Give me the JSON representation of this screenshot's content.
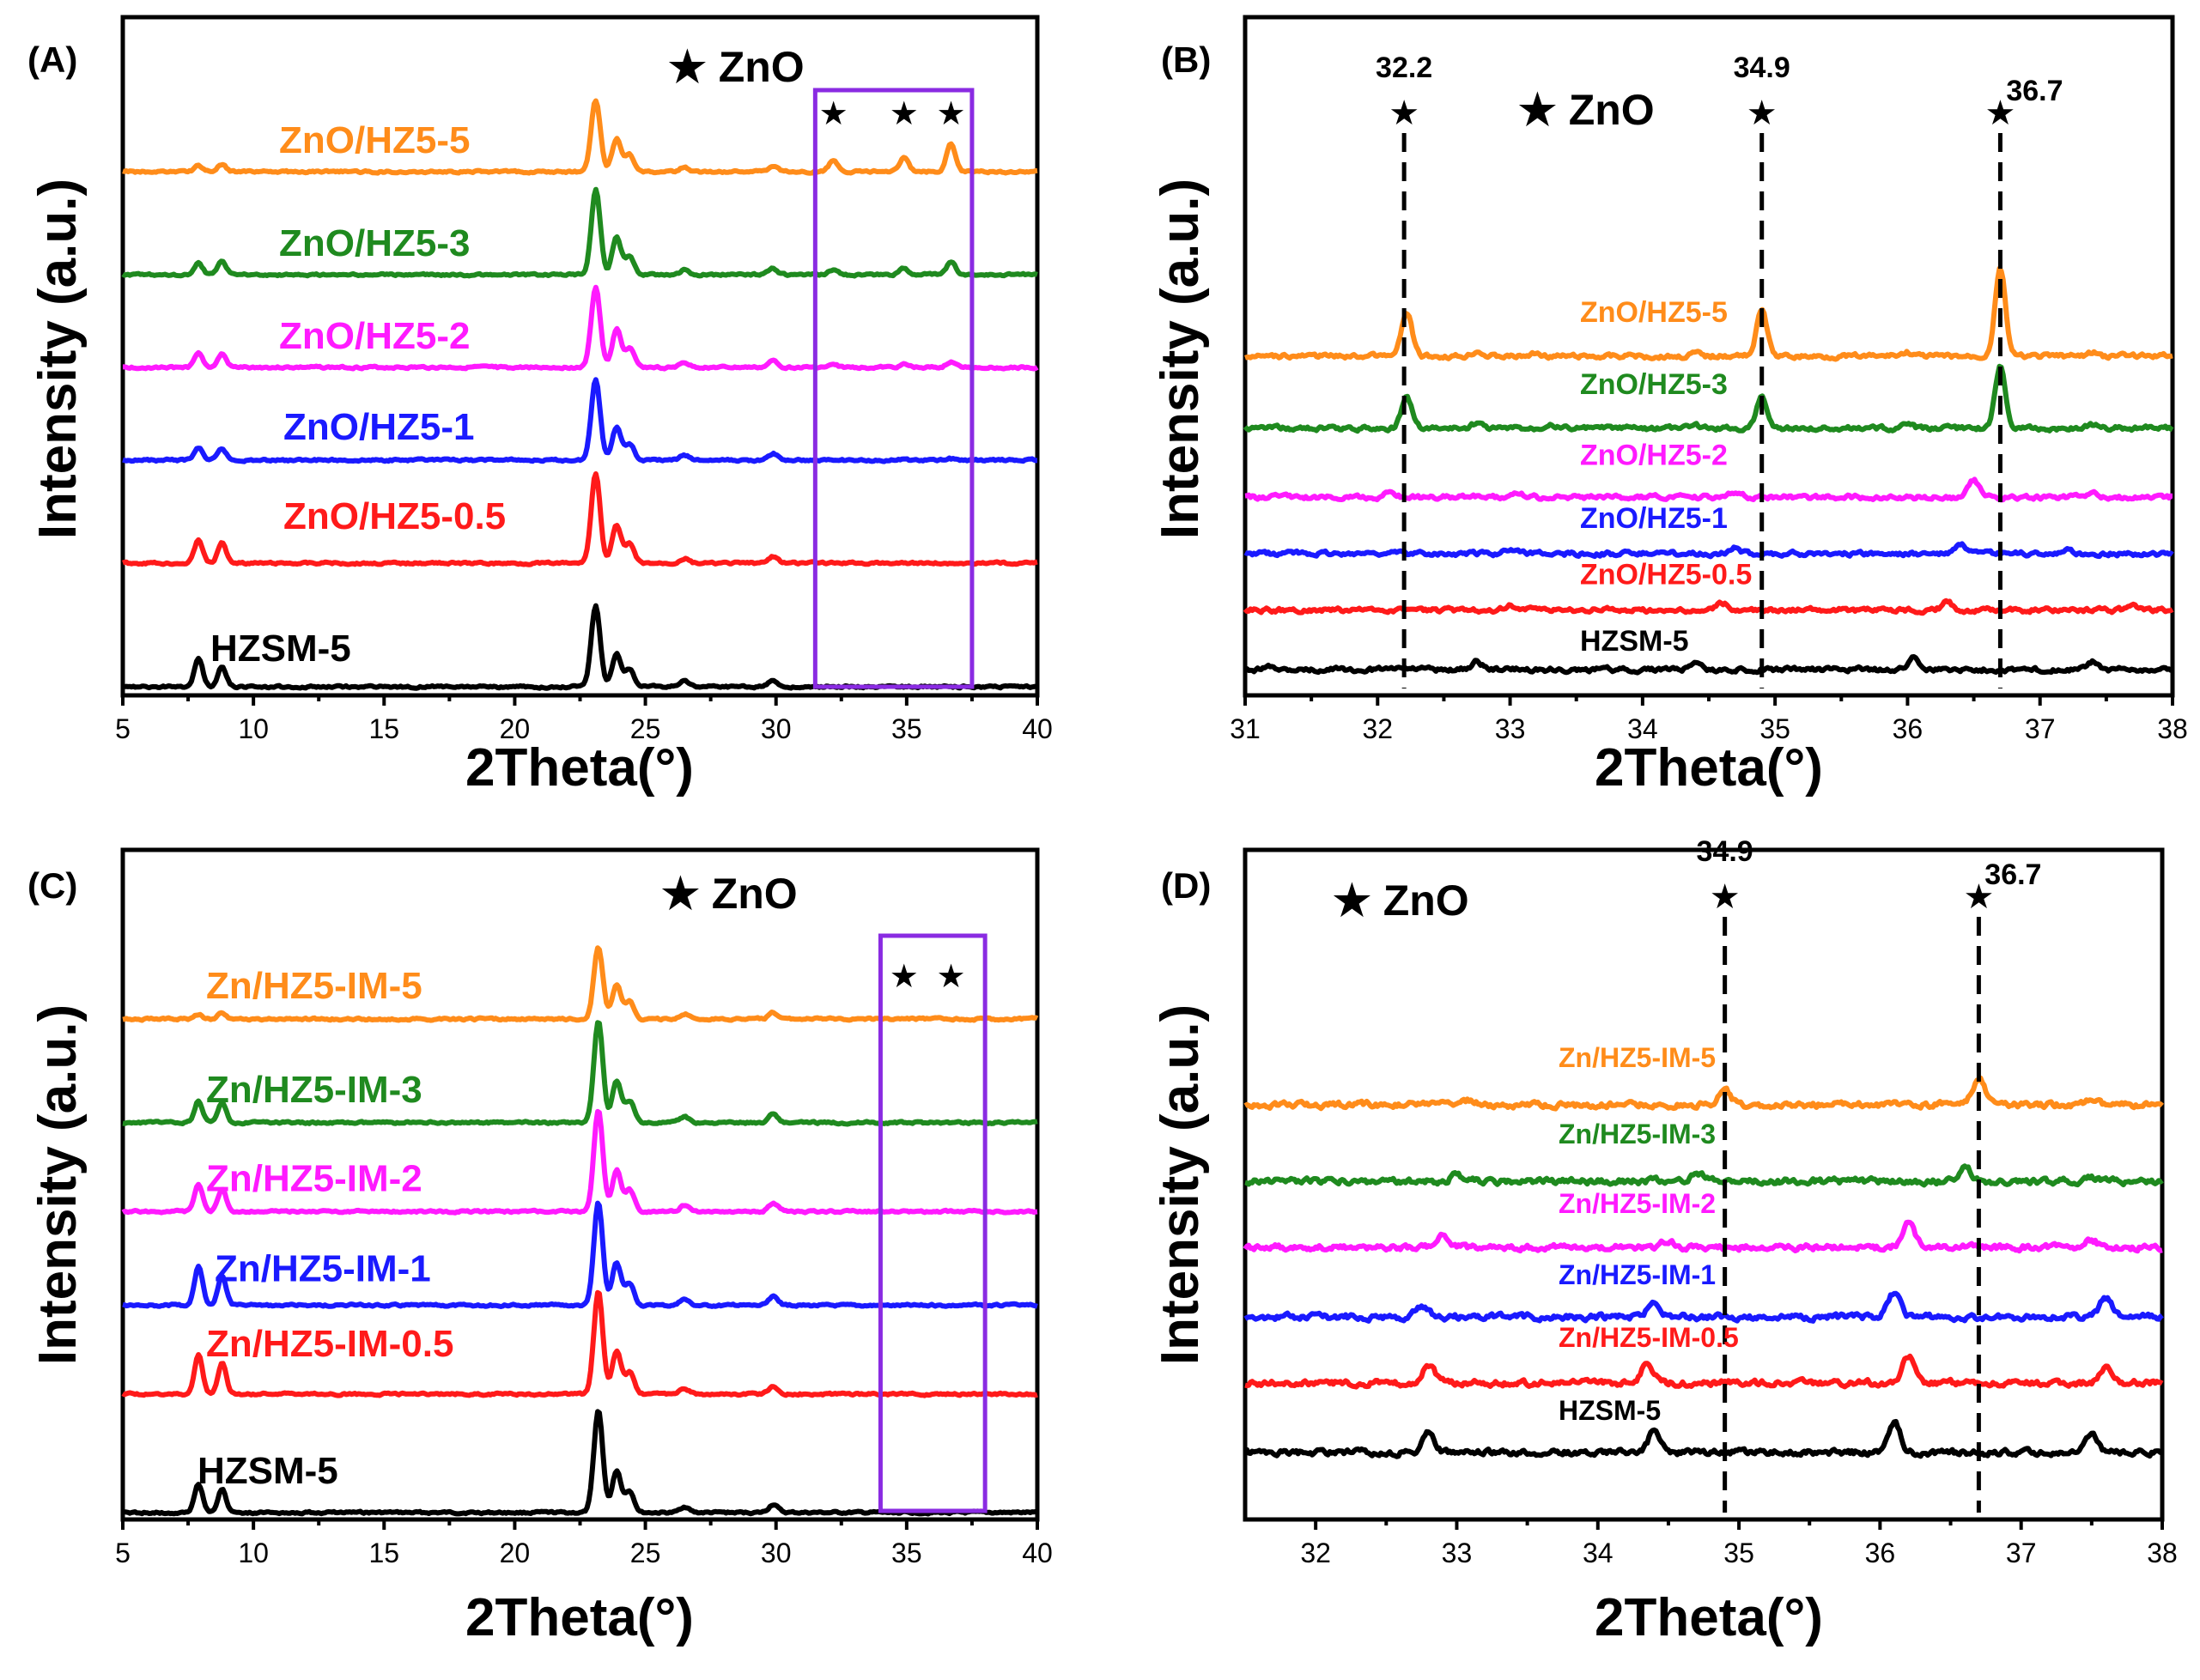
{
  "chart_data": [
    {
      "type": "line",
      "panel": "(A)",
      "xlabel": "2Theta(°)",
      "ylabel": "Intensity (a.u.)",
      "xlim": [
        5,
        40
      ],
      "xticks": [
        5,
        10,
        15,
        20,
        25,
        30,
        35,
        40
      ],
      "legend": "★ ZnO",
      "zoom_box_x": [
        31.5,
        37.5
      ],
      "zno_markers_x": [
        32.2,
        34.9,
        36.7
      ],
      "annotations": [],
      "guides": [],
      "series": [
        {
          "name": "ZnO/HZ5-5",
          "color": "#ff8c1a",
          "offset": 5.0,
          "zno_scale": 1.0,
          "peaks": [
            [
              7.9,
              0.06
            ],
            [
              8.8,
              0.08
            ],
            [
              23.1,
              0.75
            ],
            [
              23.9,
              0.35
            ],
            [
              24.4,
              0.18
            ],
            [
              26.5,
              0.05
            ],
            [
              29.9,
              0.06
            ],
            [
              32.2,
              0.12
            ],
            [
              34.9,
              0.15
            ],
            [
              36.7,
              0.3
            ]
          ]
        },
        {
          "name": "ZnO/HZ5-3",
          "color": "#1f8a1f",
          "offset": 4.0,
          "zno_scale": 0.45,
          "peaks": [
            [
              7.9,
              0.12
            ],
            [
              8.8,
              0.14
            ],
            [
              23.1,
              0.9
            ],
            [
              23.9,
              0.4
            ],
            [
              24.4,
              0.2
            ],
            [
              26.5,
              0.05
            ],
            [
              29.9,
              0.06
            ],
            [
              32.2,
              0.12
            ],
            [
              34.9,
              0.15
            ],
            [
              36.7,
              0.3
            ]
          ]
        },
        {
          "name": "ZnO/HZ5-2",
          "color": "#ff1aff",
          "offset": 3.1,
          "zno_scale": 0.2,
          "peaks": [
            [
              7.9,
              0.14
            ],
            [
              8.8,
              0.14
            ],
            [
              23.1,
              0.85
            ],
            [
              23.9,
              0.4
            ],
            [
              24.4,
              0.2
            ],
            [
              26.5,
              0.05
            ],
            [
              29.9,
              0.07
            ],
            [
              32.2,
              0.12
            ],
            [
              34.9,
              0.15
            ],
            [
              36.7,
              0.3
            ]
          ]
        },
        {
          "name": "ZnO/HZ5-1",
          "color": "#1a1aff",
          "offset": 2.2,
          "zno_scale": 0.05,
          "peaks": [
            [
              7.9,
              0.13
            ],
            [
              8.8,
              0.12
            ],
            [
              23.1,
              0.85
            ],
            [
              23.9,
              0.35
            ],
            [
              24.4,
              0.18
            ],
            [
              26.5,
              0.05
            ],
            [
              29.9,
              0.07
            ],
            [
              32.2,
              0.12
            ],
            [
              34.9,
              0.15
            ],
            [
              36.7,
              0.3
            ]
          ]
        },
        {
          "name": "ZnO/HZ5-0.5",
          "color": "#ff1a1a",
          "offset": 1.2,
          "zno_scale": 0.0,
          "peaks": [
            [
              7.9,
              0.25
            ],
            [
              8.8,
              0.22
            ],
            [
              23.1,
              0.95
            ],
            [
              23.9,
              0.4
            ],
            [
              24.4,
              0.2
            ],
            [
              26.5,
              0.05
            ],
            [
              29.9,
              0.07
            ],
            [
              32.2,
              0.12
            ],
            [
              34.9,
              0.15
            ],
            [
              36.7,
              0.3
            ]
          ]
        },
        {
          "name": "HZSM-5",
          "color": "#000000",
          "offset": 0.0,
          "zno_scale": 0.0,
          "peaks": [
            [
              7.9,
              0.3
            ],
            [
              8.8,
              0.22
            ],
            [
              23.1,
              0.85
            ],
            [
              23.9,
              0.35
            ],
            [
              24.4,
              0.18
            ],
            [
              26.5,
              0.06
            ],
            [
              29.9,
              0.07
            ],
            [
              32.2,
              0.12
            ],
            [
              34.9,
              0.15
            ],
            [
              36.7,
              0.3
            ]
          ]
        }
      ]
    },
    {
      "type": "line",
      "panel": "(B)",
      "xlabel": "2Theta(°)",
      "ylabel": "Intensity (a.u.)",
      "xlim": [
        31,
        38
      ],
      "xticks": [
        31,
        32,
        33,
        34,
        35,
        36,
        37,
        38
      ],
      "legend": "★ ZnO",
      "zno_markers_x": [
        32.2,
        34.9,
        36.7
      ],
      "annotations": [
        "32.2",
        "34.9",
        "36.7"
      ],
      "guides": [
        32.2,
        34.9,
        36.7
      ],
      "series": [
        {
          "name": "ZnO/HZ5-5",
          "color": "#ff8c1a",
          "offset": 5.0,
          "zno_scale": 1.0,
          "peaks": [
            [
              32.75,
              0.1
            ],
            [
              33.2,
              0.06
            ],
            [
              34.4,
              0.06
            ],
            [
              36.0,
              0.08
            ],
            [
              37.4,
              0.07
            ],
            [
              32.22,
              0.85
            ],
            [
              34.9,
              0.9
            ],
            [
              36.7,
              1.7
            ]
          ]
        },
        {
          "name": "ZnO/HZ5-3",
          "color": "#1f8a1f",
          "offset": 3.85,
          "zno_scale": 0.7,
          "peaks": [
            [
              32.75,
              0.1
            ],
            [
              33.3,
              0.1
            ],
            [
              34.4,
              0.06
            ],
            [
              36.0,
              0.08
            ],
            [
              37.4,
              0.07
            ],
            [
              32.22,
              0.85
            ],
            [
              34.9,
              0.9
            ],
            [
              36.7,
              1.7
            ]
          ]
        },
        {
          "name": "ZnO/HZ5-2",
          "color": "#ff1aff",
          "offset": 2.75,
          "zno_scale": 0.3,
          "peaks": [
            [
              32.1,
              0.1
            ],
            [
              33.05,
              0.08
            ],
            [
              34.7,
              0.1
            ],
            [
              36.5,
              0.35
            ],
            [
              37.4,
              0.07
            ]
          ]
        },
        {
          "name": "ZnO/HZ5-1",
          "color": "#1a1aff",
          "offset": 1.85,
          "zno_scale": 0.0,
          "peaks": [
            [
              33.0,
              0.1
            ],
            [
              34.7,
              0.12
            ],
            [
              36.4,
              0.18
            ],
            [
              37.2,
              0.06
            ]
          ]
        },
        {
          "name": "ZnO/HZ5-0.5",
          "color": "#ff1a1a",
          "offset": 0.95,
          "zno_scale": 0.0,
          "peaks": [
            [
              33.0,
              0.1
            ],
            [
              34.6,
              0.15
            ],
            [
              36.3,
              0.15
            ],
            [
              37.7,
              0.1
            ]
          ]
        },
        {
          "name": "HZSM-5",
          "color": "#000000",
          "offset": 0.0,
          "zno_scale": 0.0,
          "peaks": [
            [
              31.2,
              0.05
            ],
            [
              32.75,
              0.15
            ],
            [
              34.4,
              0.15
            ],
            [
              36.05,
              0.25
            ],
            [
              37.4,
              0.15
            ]
          ]
        }
      ]
    },
    {
      "type": "line",
      "panel": "(C)",
      "xlabel": "2Theta(°)",
      "ylabel": "Intensity (a.u.)",
      "xlim": [
        5,
        40
      ],
      "xticks": [
        5,
        10,
        15,
        20,
        25,
        30,
        35,
        40
      ],
      "legend": "★ ZnO",
      "zoom_box_x": [
        34.0,
        38.0
      ],
      "zno_markers_x": [
        34.9,
        36.7
      ],
      "annotations": [],
      "guides": [],
      "series": [
        {
          "name": "Zn/HZ5-IM-5",
          "color": "#ff8c1a",
          "offset": 5.0,
          "zno_scale": 0.0,
          "peaks": [
            [
              7.9,
              0.04
            ],
            [
              8.8,
              0.06
            ],
            [
              23.2,
              0.6
            ],
            [
              23.9,
              0.28
            ],
            [
              24.4,
              0.15
            ],
            [
              26.5,
              0.04
            ],
            [
              29.9,
              0.05
            ]
          ]
        },
        {
          "name": "Zn/HZ5-IM-3",
          "color": "#1f8a1f",
          "offset": 3.95,
          "zno_scale": 0.0,
          "peaks": [
            [
              7.9,
              0.18
            ],
            [
              8.8,
              0.16
            ],
            [
              23.2,
              0.85
            ],
            [
              23.9,
              0.35
            ],
            [
              24.4,
              0.18
            ],
            [
              26.5,
              0.05
            ],
            [
              29.9,
              0.07
            ]
          ]
        },
        {
          "name": "Zn/HZ5-IM-2",
          "color": "#ff1aff",
          "offset": 3.05,
          "zno_scale": 0.0,
          "peaks": [
            [
              7.9,
              0.22
            ],
            [
              8.8,
              0.18
            ],
            [
              23.2,
              0.85
            ],
            [
              23.9,
              0.35
            ],
            [
              24.4,
              0.18
            ],
            [
              26.5,
              0.05
            ],
            [
              29.9,
              0.07
            ]
          ]
        },
        {
          "name": "Zn/HZ5-IM-1",
          "color": "#1a1aff",
          "offset": 2.1,
          "zno_scale": 0.0,
          "peaks": [
            [
              7.9,
              0.32
            ],
            [
              8.8,
              0.24
            ],
            [
              23.2,
              0.85
            ],
            [
              23.9,
              0.35
            ],
            [
              24.4,
              0.18
            ],
            [
              26.5,
              0.05
            ],
            [
              29.9,
              0.07
            ]
          ]
        },
        {
          "name": "Zn/HZ5-IM-0.5",
          "color": "#ff1a1a",
          "offset": 1.2,
          "zno_scale": 0.0,
          "peaks": [
            [
              7.9,
              0.32
            ],
            [
              8.8,
              0.26
            ],
            [
              23.2,
              0.85
            ],
            [
              23.9,
              0.35
            ],
            [
              24.4,
              0.18
            ],
            [
              26.5,
              0.05
            ],
            [
              29.9,
              0.07
            ]
          ]
        },
        {
          "name": "HZSM-5",
          "color": "#000000",
          "offset": 0.0,
          "zno_scale": 0.0,
          "peaks": [
            [
              7.9,
              0.24
            ],
            [
              8.8,
              0.2
            ],
            [
              23.2,
              0.85
            ],
            [
              23.9,
              0.35
            ],
            [
              24.4,
              0.18
            ],
            [
              26.5,
              0.05
            ],
            [
              29.9,
              0.07
            ]
          ]
        }
      ]
    },
    {
      "type": "line",
      "panel": "(D)",
      "xlabel": "2Theta(°)",
      "ylabel": "Intensity (a.u.)",
      "xlim": [
        31.5,
        38
      ],
      "xticks": [
        32,
        33,
        34,
        35,
        36,
        37,
        38
      ],
      "legend": "★ ZnO",
      "zno_markers_x": [
        34.9,
        36.7
      ],
      "annotations": [
        "34.9",
        "36.7"
      ],
      "guides": [
        34.9,
        36.7
      ],
      "series": [
        {
          "name": "Zn/HZ5-IM-5",
          "color": "#ff8c1a",
          "offset": 5.0,
          "zno_scale": 0.0,
          "peaks": [
            [
              33.1,
              0.08
            ],
            [
              34.9,
              0.25
            ],
            [
              36.7,
              0.45
            ],
            [
              37.5,
              0.1
            ]
          ]
        },
        {
          "name": "Zn/HZ5-IM-3",
          "color": "#1f8a1f",
          "offset": 3.9,
          "zno_scale": 0.0,
          "peaks": [
            [
              33.0,
              0.1
            ],
            [
              34.7,
              0.15
            ],
            [
              36.6,
              0.25
            ],
            [
              37.5,
              0.05
            ]
          ]
        },
        {
          "name": "Zn/HZ5-IM-2",
          "color": "#ff1aff",
          "offset": 2.95,
          "zno_scale": 0.0,
          "peaks": [
            [
              32.9,
              0.2
            ],
            [
              34.5,
              0.12
            ],
            [
              36.2,
              0.4
            ],
            [
              37.5,
              0.12
            ]
          ]
        },
        {
          "name": "Zn/HZ5-IM-1",
          "color": "#1a1aff",
          "offset": 1.95,
          "zno_scale": 0.0,
          "peaks": [
            [
              32.75,
              0.2
            ],
            [
              34.4,
              0.25
            ],
            [
              36.1,
              0.4
            ],
            [
              37.6,
              0.3
            ]
          ]
        },
        {
          "name": "Zn/HZ5-IM-0.5",
          "color": "#ff1a1a",
          "offset": 1.0,
          "zno_scale": 0.0,
          "peaks": [
            [
              32.8,
              0.3
            ],
            [
              34.35,
              0.35
            ],
            [
              36.2,
              0.45
            ],
            [
              37.6,
              0.25
            ]
          ]
        },
        {
          "name": "HZSM-5",
          "color": "#000000",
          "offset": 0.0,
          "zno_scale": 0.0,
          "peaks": [
            [
              32.8,
              0.35
            ],
            [
              34.4,
              0.35
            ],
            [
              36.1,
              0.5
            ],
            [
              37.5,
              0.3
            ]
          ]
        }
      ]
    }
  ]
}
